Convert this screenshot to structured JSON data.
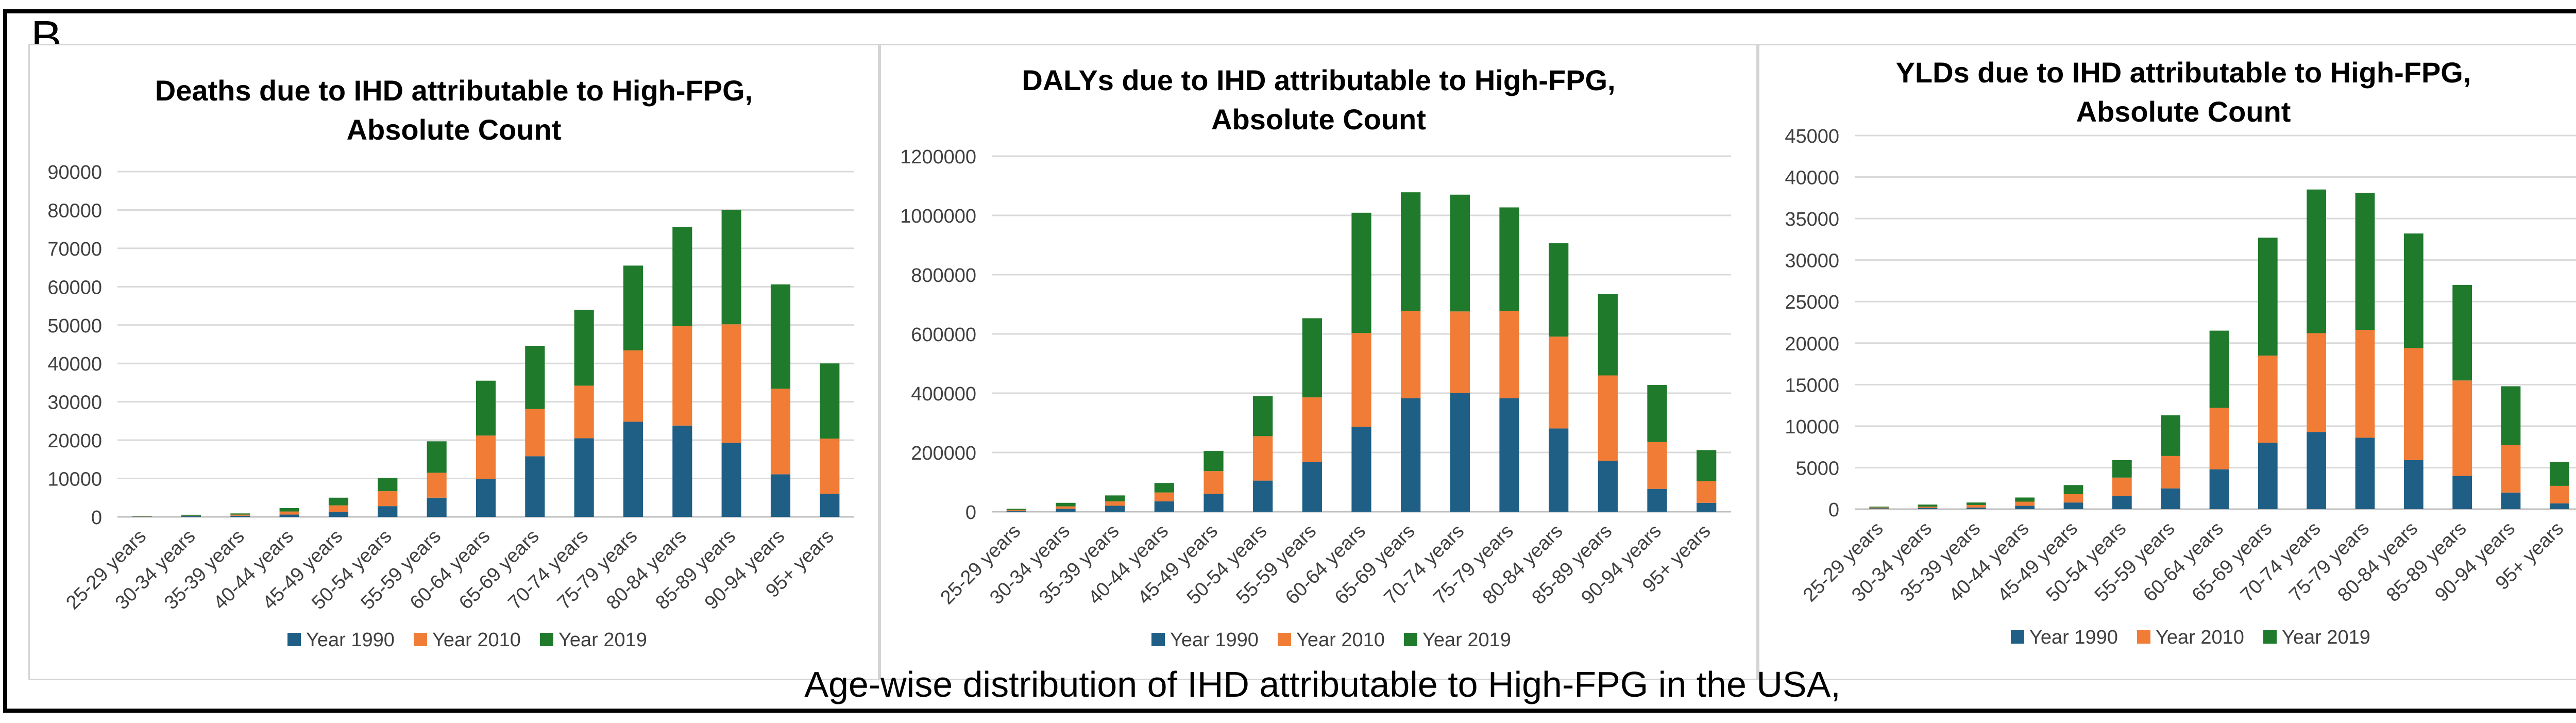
{
  "panel_label": "B.",
  "caption": "Age-wise distribution of IHD attributable to High-FPG in the USA,",
  "colors": {
    "year_1990": "#1f5f86",
    "year_2010": "#f07c36",
    "year_2019": "#1f7a2b"
  },
  "chart_data": [
    {
      "type": "bar",
      "stacked": true,
      "title": "Deaths due to IHD attributable to High-FPG,",
      "subtitle": "Absolute Count",
      "categories": [
        "25-29 years",
        "30-34 years",
        "35-39 years",
        "40-44 years",
        "45-49 years",
        "50-54 years",
        "55-59 years",
        "60-64 years",
        "65-69 years",
        "70-74 years",
        "75-79 years",
        "80-84 years",
        "85-89 years",
        "90-94 years",
        "95+ years"
      ],
      "series": [
        {
          "name": "Year 1990",
          "values": [
            50,
            150,
            300,
            600,
            1300,
            2800,
            5000,
            9900,
            15800,
            20500,
            24800,
            23800,
            19300,
            11100,
            6000
          ]
        },
        {
          "name": "Year 2010",
          "values": [
            50,
            150,
            300,
            800,
            1700,
            3900,
            6500,
            11300,
            12300,
            13700,
            18600,
            25900,
            30900,
            22300,
            14400
          ]
        },
        {
          "name": "Year 2019",
          "values": [
            100,
            250,
            300,
            900,
            2000,
            3500,
            8200,
            14300,
            16500,
            19800,
            22100,
            25900,
            29800,
            27200,
            19600
          ]
        }
      ],
      "yticks": [
        0,
        10000,
        20000,
        30000,
        40000,
        50000,
        60000,
        70000,
        80000,
        90000
      ],
      "ylim": [
        0,
        90000
      ],
      "xlabel": "",
      "ylabel": "",
      "grid": true,
      "legend": "bottom"
    },
    {
      "type": "bar",
      "stacked": true,
      "title": "DALYs due to IHD attributable to High-FPG,",
      "subtitle": "Absolute Count",
      "categories": [
        "25-29 years",
        "30-34 years",
        "35-39 years",
        "40-44 years",
        "45-49 years",
        "50-54 years",
        "55-59 years",
        "60-64 years",
        "65-69 years",
        "70-74 years",
        "75-79 years",
        "80-84 years",
        "85-89 years",
        "90-94 years",
        "95+ years"
      ],
      "series": [
        {
          "name": "Year 1990",
          "values": [
            3000,
            10000,
            20000,
            35000,
            60000,
            105000,
            168000,
            287000,
            383000,
            400000,
            383000,
            281000,
            172000,
            77000,
            30000
          ]
        },
        {
          "name": "Year 2010",
          "values": [
            3000,
            8000,
            15000,
            30000,
            77000,
            150000,
            218000,
            316000,
            295000,
            276000,
            295000,
            310000,
            288000,
            158000,
            73000
          ]
        },
        {
          "name": "Year 2019",
          "values": [
            4000,
            12000,
            20000,
            32000,
            68000,
            135000,
            267000,
            406000,
            400000,
            394000,
            349000,
            315000,
            275000,
            193000,
            105000
          ]
        }
      ],
      "yticks": [
        0,
        200000,
        400000,
        600000,
        800000,
        1000000,
        1200000
      ],
      "ylim": [
        0,
        1200000
      ],
      "xlabel": "",
      "ylabel": "",
      "grid": true,
      "legend": "bottom"
    },
    {
      "type": "bar",
      "stacked": true,
      "title": "YLDs due to IHD attributable to High-FPG,",
      "subtitle": "Absolute Count",
      "categories": [
        "25-29 years",
        "30-34 years",
        "35-39 years",
        "40-44 years",
        "45-49 years",
        "50-54 years",
        "55-59 years",
        "60-64 years",
        "65-69 years",
        "70-74 years",
        "75-79 years",
        "80-84 years",
        "85-89 years",
        "90-94 years",
        "95+ years"
      ],
      "series": [
        {
          "name": "Year 1990",
          "values": [
            100,
            150,
            200,
            400,
            800,
            1600,
            2500,
            4800,
            8000,
            9300,
            8600,
            5900,
            4000,
            2000,
            700
          ]
        },
        {
          "name": "Year 2010",
          "values": [
            100,
            150,
            300,
            500,
            1000,
            2200,
            3900,
            7400,
            10500,
            11900,
            13000,
            13500,
            11500,
            5700,
            2100
          ]
        },
        {
          "name": "Year 2019",
          "values": [
            100,
            250,
            300,
            500,
            1100,
            2100,
            4900,
            9300,
            14200,
            17300,
            16500,
            13800,
            11500,
            7100,
            2900
          ]
        }
      ],
      "yticks": [
        0,
        5000,
        10000,
        15000,
        20000,
        25000,
        30000,
        35000,
        40000,
        45000
      ],
      "ylim": [
        0,
        45000
      ],
      "xlabel": "",
      "ylabel": "",
      "grid": true,
      "legend": "bottom"
    }
  ]
}
